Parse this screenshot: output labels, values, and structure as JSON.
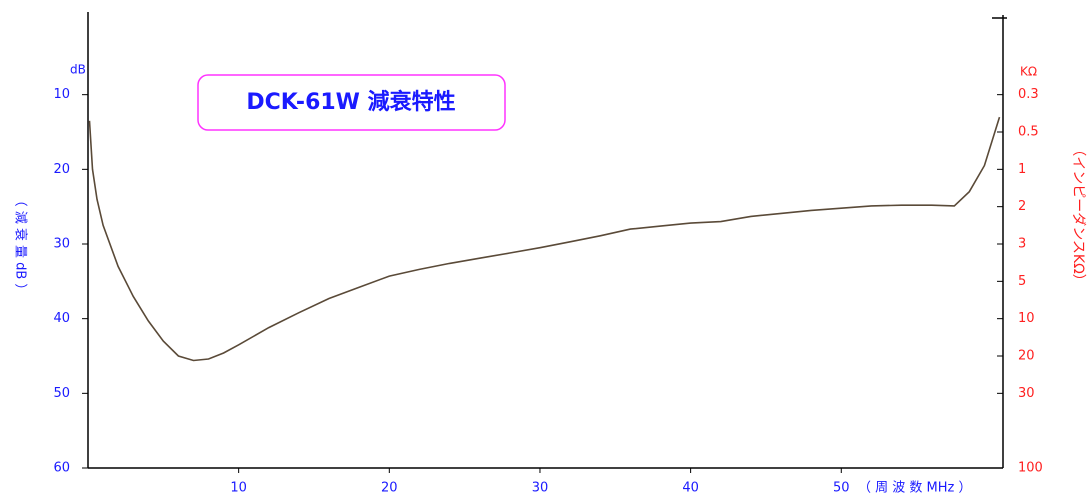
{
  "chart_data": {
    "type": "line",
    "title": "DCK-61W 減衰特性",
    "ylabel": "（ 減 衰 量 dB ）",
    "yunit": "dB",
    "xlabel": "（ 周 波 数  MHz ）",
    "y2unit": "KΩ",
    "y2label": "（インピーダンスKΩ）",
    "xlim": [
      0,
      61
    ],
    "ylim": [
      60,
      0
    ],
    "xticks": [
      10,
      20,
      30,
      40,
      50
    ],
    "yticks": [
      10,
      20,
      30,
      40,
      50,
      60
    ],
    "y2ticks": [
      {
        "value": 0.3,
        "y": 10
      },
      {
        "value": 0.5,
        "y": 15
      },
      {
        "value": 1,
        "y": 20
      },
      {
        "value": 2,
        "y": 25
      },
      {
        "value": 3,
        "y": 30
      },
      {
        "value": 5,
        "y": 35
      },
      {
        "value": 10,
        "y": 40
      },
      {
        "value": 20,
        "y": 45
      },
      {
        "value": 30,
        "y": 50
      },
      {
        "value": 100,
        "y": 60
      }
    ],
    "series": [
      {
        "color": "#5a4a38",
        "x": [
          0.1,
          0.3,
          0.6,
          1,
          2,
          3,
          4,
          5,
          6,
          7,
          8,
          9,
          10,
          12,
          14,
          16,
          18,
          20,
          22,
          24,
          26,
          28,
          30,
          32,
          34,
          36,
          38,
          40,
          42,
          44,
          46,
          48,
          50,
          52,
          54,
          56,
          57.5,
          58.5,
          59.5,
          60.5
        ],
        "values": [
          13.5,
          20,
          24,
          27.5,
          33,
          37,
          40.3,
          43,
          45,
          45.6,
          45.4,
          44.6,
          43.5,
          41.2,
          39.2,
          37.3,
          35.8,
          34.3,
          33.4,
          32.6,
          31.9,
          31.2,
          30.5,
          29.7,
          28.9,
          28,
          27.6,
          27.2,
          27,
          26.3,
          25.9,
          25.5,
          25.2,
          24.9,
          24.8,
          24.8,
          24.9,
          23,
          19.5,
          13
        ]
      }
    ]
  }
}
